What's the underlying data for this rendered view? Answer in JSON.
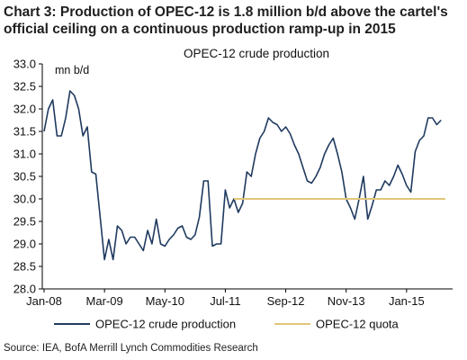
{
  "header": {
    "title": "Chart 3: Production of OPEC-12 is 1.8 million b/d above the cartel's official ceiling on a continuous production ramp-up in 2015"
  },
  "footer": {
    "source": "Source: IEA, BofA Merrill Lynch Commodities Research"
  },
  "colors": {
    "production": "#1f3a5f",
    "quota": "#e1c67a",
    "axis": "#000000"
  },
  "chart_data": {
    "type": "line",
    "title": "OPEC-12 crude production",
    "ylabel": "mn b/d",
    "xlabel": "",
    "ylim": [
      28.0,
      33.0
    ],
    "yticks": [
      "33.0",
      "32.5",
      "32.0",
      "31.5",
      "31.0",
      "30.5",
      "30.0",
      "29.5",
      "29.0",
      "28.5",
      "28.0"
    ],
    "xticks": [
      {
        "label": "Jan-08",
        "x": 0
      },
      {
        "label": "Mar-09",
        "x": 14
      },
      {
        "label": "May-10",
        "x": 28
      },
      {
        "label": "Jul-11",
        "x": 42
      },
      {
        "label": "Sep-12",
        "x": 56
      },
      {
        "label": "Nov-13",
        "x": 70
      },
      {
        "label": "Jan-15",
        "x": 84
      }
    ],
    "xlim": [
      0,
      93
    ],
    "grid": false,
    "legend": "bottom",
    "series": [
      {
        "name": "OPEC-12 crude production",
        "x": [
          0,
          1,
          2,
          3,
          4,
          5,
          6,
          7,
          8,
          9,
          10,
          11,
          12,
          13,
          14,
          15,
          16,
          17,
          18,
          19,
          20,
          21,
          22,
          23,
          24,
          25,
          26,
          27,
          28,
          29,
          30,
          31,
          32,
          33,
          34,
          35,
          36,
          37,
          38,
          39,
          40,
          41,
          42,
          43,
          44,
          45,
          46,
          47,
          48,
          49,
          50,
          51,
          52,
          53,
          54,
          55,
          56,
          57,
          58,
          59,
          60,
          61,
          62,
          63,
          64,
          65,
          66,
          67,
          68,
          69,
          70,
          71,
          72,
          73,
          74,
          75,
          76,
          77,
          78,
          79,
          80,
          81,
          82,
          83,
          84,
          85,
          86,
          87,
          88,
          89,
          90,
          91,
          92
        ],
        "values": [
          31.5,
          32.0,
          32.2,
          31.4,
          31.4,
          31.8,
          32.4,
          32.3,
          32.0,
          31.4,
          31.6,
          30.6,
          30.55,
          29.6,
          28.65,
          29.1,
          28.65,
          29.4,
          29.3,
          29.0,
          29.15,
          29.15,
          29.0,
          28.85,
          29.3,
          29.0,
          29.55,
          29.0,
          28.95,
          29.1,
          29.2,
          29.35,
          29.4,
          29.15,
          29.1,
          29.2,
          29.6,
          30.4,
          30.4,
          28.95,
          29.0,
          29.0,
          30.2,
          29.8,
          30.0,
          29.7,
          29.9,
          30.6,
          30.5,
          31.0,
          31.35,
          31.5,
          31.8,
          31.7,
          31.65,
          31.5,
          31.6,
          31.45,
          31.2,
          31.0,
          30.7,
          30.4,
          30.35,
          30.5,
          30.7,
          31.0,
          31.2,
          31.35,
          31.0,
          30.6,
          30.0,
          29.8,
          29.55,
          30.0,
          30.5,
          29.55,
          29.85,
          30.2,
          30.2,
          30.4,
          30.3,
          30.5,
          30.75,
          30.55,
          30.3,
          30.15,
          31.05,
          31.3,
          31.4,
          31.8,
          31.8,
          31.65,
          31.75
        ],
        "color": "#1f3a5f"
      },
      {
        "name": "OPEC-12 quota",
        "x": [
          44,
          93
        ],
        "values": [
          30.0,
          30.0
        ],
        "color": "#e1c67a"
      }
    ]
  }
}
